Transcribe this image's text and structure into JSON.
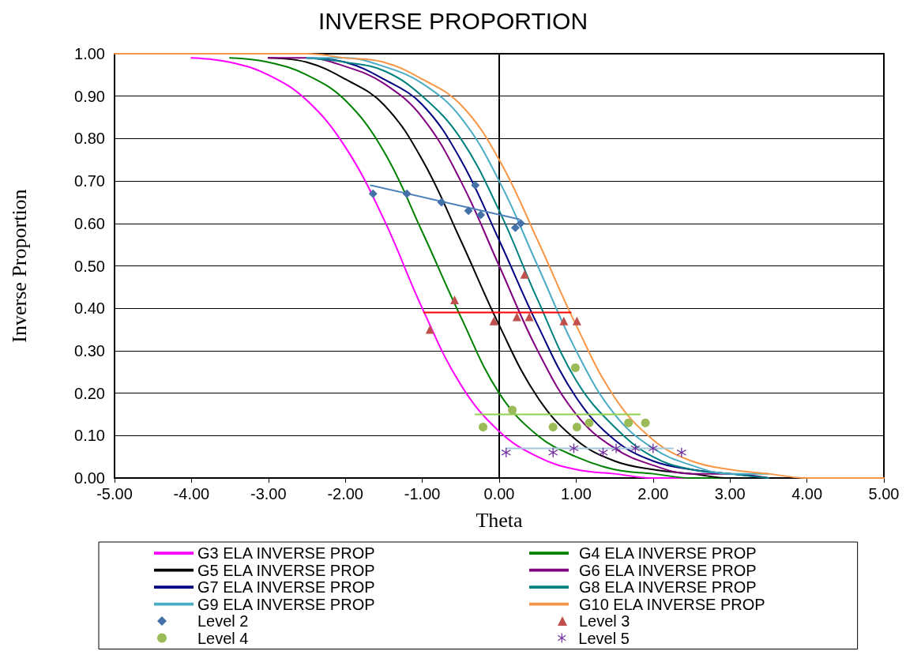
{
  "chart_data": {
    "type": "line",
    "title": "INVERSE PROPORTION",
    "xlabel": "Theta",
    "ylabel": "Inverse Proportion",
    "xlim": [
      -5,
      5
    ],
    "ylim": [
      0,
      1
    ],
    "xticks": [
      {
        "value": -5,
        "label": "-5.00"
      },
      {
        "value": -4,
        "label": "-4.00"
      },
      {
        "value": -3,
        "label": "-3.00"
      },
      {
        "value": -2,
        "label": "-2.00"
      },
      {
        "value": -1,
        "label": "-1.00"
      },
      {
        "value": 0,
        "label": "0.00"
      },
      {
        "value": 1,
        "label": "1.00"
      },
      {
        "value": 2,
        "label": "2.00"
      },
      {
        "value": 3,
        "label": "3.00"
      },
      {
        "value": 4,
        "label": "4.00"
      },
      {
        "value": 5,
        "label": "5.00"
      }
    ],
    "yticks": [
      {
        "value": 0,
        "label": "0.00"
      },
      {
        "value": 0.1,
        "label": "0.10"
      },
      {
        "value": 0.2,
        "label": "0.20"
      },
      {
        "value": 0.3,
        "label": "0.30"
      },
      {
        "value": 0.4,
        "label": "0.40"
      },
      {
        "value": 0.5,
        "label": "0.50"
      },
      {
        "value": 0.6,
        "label": "0.60"
      },
      {
        "value": 0.7,
        "label": "0.70"
      },
      {
        "value": 0.8,
        "label": "0.80"
      },
      {
        "value": 0.9,
        "label": "0.90"
      },
      {
        "value": 1,
        "label": "1.00"
      }
    ],
    "grid": "y",
    "legend": "bottom",
    "line_style": "solid",
    "x": [
      -5,
      -4.5,
      -4,
      -3.5,
      -3,
      -2.5,
      -2,
      -1.5,
      -1,
      -0.5,
      0,
      0.5,
      1,
      1.5,
      2,
      2.5,
      3,
      3.5,
      4,
      4.5,
      5
    ],
    "series": [
      {
        "name": "G3 ELA INVERSE PROP",
        "marker": "none",
        "color": "#ff00ff",
        "values": [
          null,
          null,
          0.99,
          0.98,
          0.95,
          0.89,
          0.78,
          0.61,
          0.4,
          0.22,
          0.11,
          0.05,
          0.02,
          0.01,
          0,
          0,
          0,
          0,
          null,
          null,
          null
        ]
      },
      {
        "name": "G4 ELA INVERSE PROP",
        "marker": "none",
        "color": "#008000",
        "values": [
          null,
          null,
          null,
          0.99,
          0.98,
          0.95,
          0.89,
          0.77,
          0.58,
          0.38,
          0.2,
          0.1,
          0.05,
          0.02,
          0.01,
          0,
          0,
          0,
          null,
          null,
          null
        ]
      },
      {
        "name": "G5 ELA INVERSE PROP",
        "marker": "none",
        "color": "#000000",
        "values": [
          null,
          null,
          null,
          null,
          0.99,
          0.98,
          0.94,
          0.88,
          0.75,
          0.56,
          0.36,
          0.19,
          0.09,
          0.04,
          0.02,
          0.01,
          0,
          0,
          null,
          null,
          null
        ]
      },
      {
        "name": "G6 ELA INVERSE PROP",
        "marker": "none",
        "color": "#800080",
        "values": [
          null,
          null,
          null,
          null,
          0.99,
          0.99,
          0.97,
          0.93,
          0.85,
          0.7,
          0.5,
          0.3,
          0.15,
          0.07,
          0.03,
          0.01,
          0.01,
          0,
          null,
          null,
          null
        ]
      },
      {
        "name": "G7 ELA INVERSE PROP",
        "marker": "none",
        "color": "#000080",
        "values": [
          null,
          null,
          null,
          null,
          null,
          0.99,
          0.98,
          0.94,
          0.88,
          0.75,
          0.56,
          0.36,
          0.19,
          0.09,
          0.04,
          0.02,
          0.01,
          0,
          null,
          null,
          null
        ]
      },
      {
        "name": "G8 ELA INVERSE PROP",
        "marker": "none",
        "color": "#008080",
        "values": [
          null,
          null,
          null,
          null,
          null,
          0.99,
          0.98,
          0.96,
          0.9,
          0.8,
          0.63,
          0.42,
          0.23,
          0.12,
          0.05,
          0.02,
          0.01,
          0,
          null,
          null,
          null
        ]
      },
      {
        "name": "G9 ELA INVERSE PROP",
        "marker": "none",
        "color": "#4bacc6",
        "values": [
          null,
          null,
          null,
          null,
          null,
          0.99,
          0.99,
          0.97,
          0.93,
          0.85,
          0.7,
          0.5,
          0.3,
          0.15,
          0.07,
          0.03,
          0.01,
          0.01,
          null,
          null,
          null
        ]
      },
      {
        "name": "G10 ELA INVERSE PROP",
        "marker": "none",
        "color": "#f79646",
        "values": [
          1,
          1,
          1,
          1,
          1,
          1,
          0.99,
          0.98,
          0.94,
          0.88,
          0.75,
          0.56,
          0.36,
          0.19,
          0.09,
          0.04,
          0.02,
          0.01,
          0,
          0,
          0
        ]
      },
      {
        "name": "Level 2",
        "type": "scatter",
        "marker": "diamond",
        "color": "#4472a8",
        "x": [
          -1.64,
          -1.2,
          -0.75,
          -0.4,
          -0.24,
          -0.31,
          0.28,
          0.21
        ],
        "values": [
          0.67,
          0.67,
          0.65,
          0.63,
          0.62,
          0.69,
          0.6,
          0.59
        ]
      },
      {
        "name": "Level 3",
        "type": "scatter",
        "marker": "triangle",
        "color": "#c0504d",
        "x": [
          -0.9,
          -0.58,
          -0.07,
          0.23,
          0.39,
          0.33,
          0.84,
          1.01
        ],
        "values": [
          0.35,
          0.42,
          0.37,
          0.38,
          0.38,
          0.48,
          0.37,
          0.37
        ]
      },
      {
        "name": "Level 4",
        "type": "scatter",
        "marker": "circle",
        "color": "#9bbb59",
        "x": [
          -0.21,
          0.17,
          0.99,
          0.7,
          1.01,
          1.17,
          1.68,
          1.9
        ],
        "values": [
          0.12,
          0.16,
          0.26,
          0.12,
          0.12,
          0.13,
          0.13,
          0.13
        ]
      },
      {
        "name": "Level 5",
        "type": "scatter",
        "marker": "cross",
        "color": "#7030a0",
        "x": [
          0.09,
          0.7,
          0.97,
          1.35,
          1.52,
          1.77,
          2,
          2.37
        ],
        "values": [
          0.06,
          0.06,
          0.07,
          0.06,
          0.07,
          0.07,
          0.07,
          0.06
        ]
      },
      {
        "marker": "none",
        "color": "#4f81bd",
        "x": [
          -1.67,
          0.26
        ],
        "values": [
          0.69,
          0.61
        ]
      },
      {
        "marker": "none",
        "color": "#ff0000",
        "x": [
          -0.98,
          0.93
        ],
        "values": [
          0.39,
          0.39
        ]
      },
      {
        "marker": "none",
        "color": "#92d050",
        "x": [
          -0.31,
          1.83
        ],
        "values": [
          0.15,
          0.15
        ]
      },
      {
        "marker": "none",
        "color": "#a5c8d8",
        "x": [
          0.09,
          2.26
        ],
        "values": [
          0.07,
          0.07
        ]
      }
    ]
  }
}
